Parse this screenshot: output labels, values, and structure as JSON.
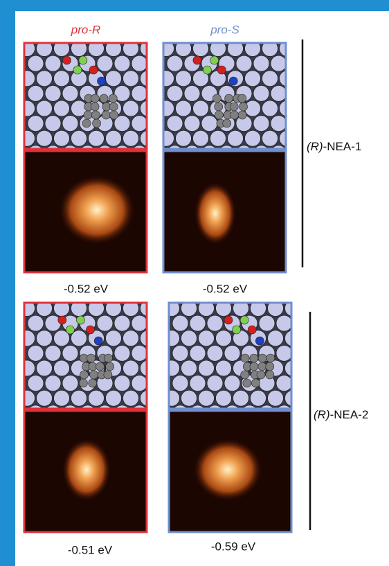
{
  "columns": [
    {
      "label": "pro-R"
    },
    {
      "label": "pro-S"
    }
  ],
  "rows": [
    {
      "label_prefix": "(R)",
      "label_rest": "-NEA-1",
      "energies": [
        "-0.52 eV",
        "-0.52 eV"
      ]
    },
    {
      "label_prefix": "(R)",
      "label_rest": "-NEA-2",
      "energies": [
        "-0.51 eV",
        "-0.59 eV"
      ]
    }
  ]
}
